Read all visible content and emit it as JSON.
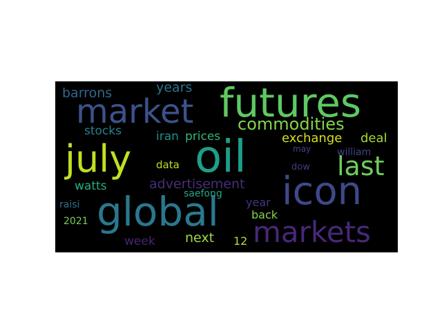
{
  "word_cloud": {
    "background": "#000000",
    "words": [
      {
        "text": "futures",
        "color": "#5ec962"
      },
      {
        "text": "oil",
        "color": "#1f9e89"
      },
      {
        "text": "market",
        "color": "#3b528b"
      },
      {
        "text": "july",
        "color": "#c2df23"
      },
      {
        "text": "global",
        "color": "#2a788e"
      },
      {
        "text": "icon",
        "color": "#3e4989"
      },
      {
        "text": "markets",
        "color": "#482878"
      },
      {
        "text": "last",
        "color": "#6ece58"
      },
      {
        "text": "commodities",
        "color": "#84d44b"
      },
      {
        "text": "advertisement",
        "color": "#472d7b"
      },
      {
        "text": "exchange",
        "color": "#d0e11c"
      },
      {
        "text": "deal",
        "color": "#a5db36"
      },
      {
        "text": "barrons",
        "color": "#31688e"
      },
      {
        "text": "years",
        "color": "#2c728e"
      },
      {
        "text": "stocks",
        "color": "#26828e"
      },
      {
        "text": "iran",
        "color": "#21918c"
      },
      {
        "text": "prices",
        "color": "#35b779"
      },
      {
        "text": "data",
        "color": "#bddf26"
      },
      {
        "text": "william",
        "color": "#414487"
      },
      {
        "text": "may",
        "color": "#3f4788"
      },
      {
        "text": "dow",
        "color": "#433e85"
      },
      {
        "text": "watts",
        "color": "#29af7f"
      },
      {
        "text": "saefong",
        "color": "#22a785"
      },
      {
        "text": "year",
        "color": "#453781"
      },
      {
        "text": "back",
        "color": "#86d549"
      },
      {
        "text": "raisi",
        "color": "#2d708e"
      },
      {
        "text": "2021",
        "color": "#7ad151"
      },
      {
        "text": "next",
        "color": "#9fda3a"
      },
      {
        "text": "12",
        "color": "#b5de2b"
      },
      {
        "text": "week",
        "color": "#482475"
      }
    ]
  }
}
